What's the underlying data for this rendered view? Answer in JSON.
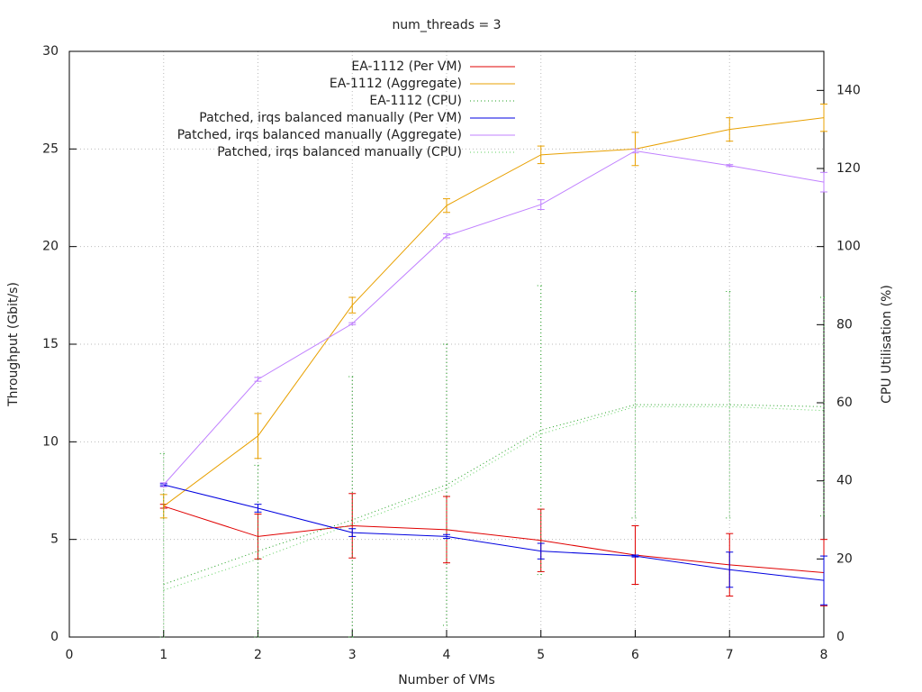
{
  "chart_data": {
    "type": "line",
    "title": "num_threads = 3",
    "x_label": "Number of VMs",
    "y_label": "Throughput (Gbit/s)",
    "y2_label": "CPU Utilisation (%)",
    "xlim": [
      0,
      8
    ],
    "xticks": [
      0,
      1,
      2,
      3,
      4,
      5,
      6,
      7,
      8
    ],
    "ylim": [
      0,
      30
    ],
    "yticks": [
      0,
      5,
      10,
      15,
      20,
      25,
      30
    ],
    "y2lim": [
      0,
      150
    ],
    "y2ticks": [
      0,
      20,
      40,
      60,
      80,
      100,
      120,
      140
    ],
    "grid": true,
    "legend": "top",
    "x": [
      1,
      2,
      3,
      4,
      5,
      6,
      7,
      8
    ],
    "series": [
      {
        "name": "EA-1112 (Per VM)",
        "color": "#e00000",
        "values": [
          6.7,
          5.15,
          5.7,
          5.5,
          4.95,
          4.2,
          3.7,
          3.3
        ],
        "errors": [
          0.1,
          1.15,
          1.65,
          1.7,
          1.6,
          1.5,
          1.6,
          1.7
        ]
      },
      {
        "name": "EA-1112 (Aggregate)",
        "color": "#e8a000",
        "values": [
          6.7,
          10.3,
          17.0,
          22.1,
          24.7,
          25.0,
          26.0,
          26.6
        ],
        "errors": [
          0.6,
          1.15,
          0.4,
          0.35,
          0.45,
          0.85,
          0.6,
          0.7
        ]
      },
      {
        "name": "EA-1112 (CPU)",
        "color": "#20a020",
        "dash": "1 3",
        "axis": "y2",
        "values": [
          13.5,
          22,
          30,
          39,
          53,
          59.5,
          59.5,
          59
        ],
        "errors": [
          33.5,
          22,
          36.7,
          36,
          37,
          29,
          29,
          28
        ]
      },
      {
        "name": "Patched, irqs balanced manually (Per VM)",
        "color": "#0000e0",
        "values": [
          7.8,
          6.6,
          5.35,
          5.15,
          4.4,
          4.15,
          3.45,
          2.9
        ],
        "errors": [
          0.05,
          0.2,
          0.2,
          0.1,
          0.4,
          0.05,
          0.9,
          1.25
        ]
      },
      {
        "name": "Patched, irqs balanced manually (Aggregate)",
        "color": "#c080ff",
        "values": [
          7.8,
          13.2,
          16.05,
          20.55,
          22.15,
          24.9,
          24.15,
          23.3
        ],
        "errors": [
          0.1,
          0.1,
          0.05,
          0.1,
          0.25,
          0.1,
          0.05,
          0.5
        ]
      },
      {
        "name": "Patched, irqs balanced manually (CPU)",
        "color": "#60d060",
        "dash": "1 3",
        "axis": "y2",
        "values": [
          12,
          20,
          29,
          38,
          52,
          59,
          59,
          58
        ],
        "errors": [
          0,
          0,
          0,
          0,
          0,
          0,
          0,
          0
        ]
      }
    ]
  }
}
